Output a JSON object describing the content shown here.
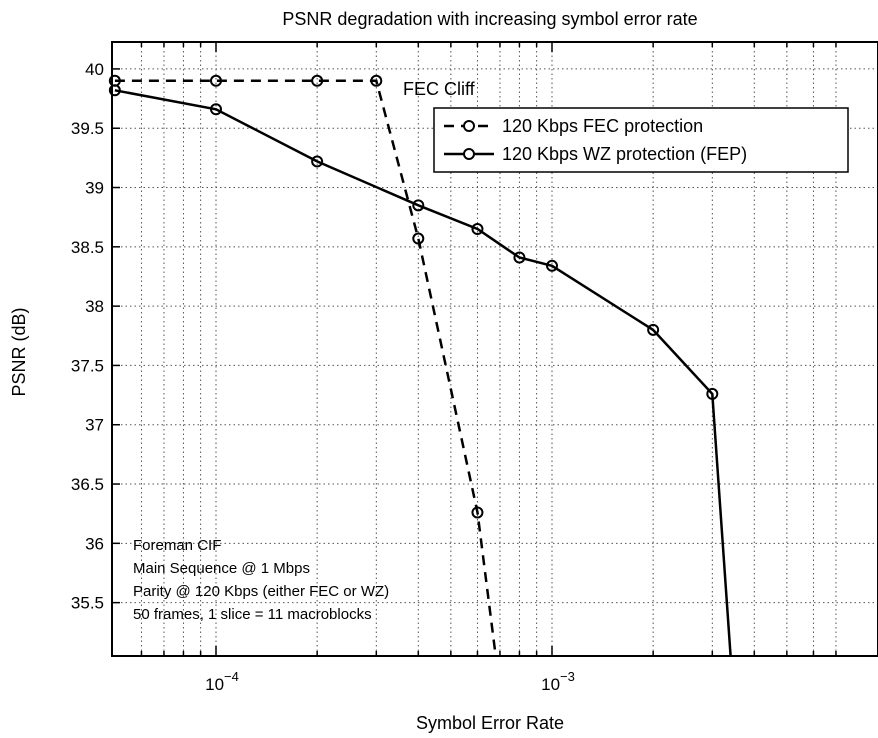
{
  "chart_data": {
    "type": "line",
    "title": "PSNR degradation with increasing symbol error rate",
    "xlabel": "Symbol Error Rate",
    "ylabel": "PSNR (dB)",
    "xscale": "log",
    "xlim": [
      5e-05,
      0.008
    ],
    "ylim": [
      35.05,
      40.2
    ],
    "grid": true,
    "legend_position": "top-right",
    "x_ticks": [
      {
        "value": 0.0001,
        "base": "10",
        "exp": "−4"
      },
      {
        "value": 0.001,
        "base": "10",
        "exp": "−3"
      }
    ],
    "y_ticks": [
      {
        "value": 35.5,
        "label": "35.5"
      },
      {
        "value": 36,
        "label": "36"
      },
      {
        "value": 36.5,
        "label": "36.5"
      },
      {
        "value": 37,
        "label": "37"
      },
      {
        "value": 37.5,
        "label": "37.5"
      },
      {
        "value": 38,
        "label": "38"
      },
      {
        "value": 38.5,
        "label": "38.5"
      },
      {
        "value": 39,
        "label": "39"
      },
      {
        "value": 39.5,
        "label": "39.5"
      },
      {
        "value": 40,
        "label": "40"
      }
    ],
    "series": [
      {
        "name": "120 Kbps FEC protection",
        "style": "dashed",
        "color": "#000000",
        "points": [
          {
            "x": 5e-05,
            "y": 39.9,
            "marker": true
          },
          {
            "x": 0.0001,
            "y": 39.9,
            "marker": true
          },
          {
            "x": 0.0002,
            "y": 39.9,
            "marker": true
          },
          {
            "x": 0.0003,
            "y": 39.9,
            "marker": true
          },
          {
            "x": 0.0004,
            "y": 38.57,
            "marker": true
          },
          {
            "x": 0.0006,
            "y": 36.26,
            "marker": true
          },
          {
            "x": 0.00068,
            "y": 35.05,
            "marker": false
          }
        ]
      },
      {
        "name": "120 Kbps WZ protection (FEP)",
        "style": "solid",
        "color": "#000000",
        "points": [
          {
            "x": 5e-05,
            "y": 39.82,
            "marker": true
          },
          {
            "x": 0.0001,
            "y": 39.66,
            "marker": true
          },
          {
            "x": 0.0002,
            "y": 39.22,
            "marker": true
          },
          {
            "x": 0.0004,
            "y": 38.85,
            "marker": true
          },
          {
            "x": 0.0006,
            "y": 38.65,
            "marker": true
          },
          {
            "x": 0.0008,
            "y": 38.41,
            "marker": true
          },
          {
            "x": 0.001,
            "y": 38.34,
            "marker": true
          },
          {
            "x": 0.002,
            "y": 37.8,
            "marker": true
          },
          {
            "x": 0.003,
            "y": 37.26,
            "marker": true
          },
          {
            "x": 0.0034,
            "y": 35.05,
            "marker": false
          }
        ]
      }
    ],
    "annotations": [
      {
        "id": "fec_cliff",
        "text": "FEC Cliff"
      },
      {
        "id": "info",
        "lines": [
          "Foreman CIF",
          "Main Sequence @ 1 Mbps",
          "Parity @ 120 Kbps (either FEC or WZ)",
          "50 frames, 1 slice = 11 macroblocks"
        ]
      }
    ]
  }
}
